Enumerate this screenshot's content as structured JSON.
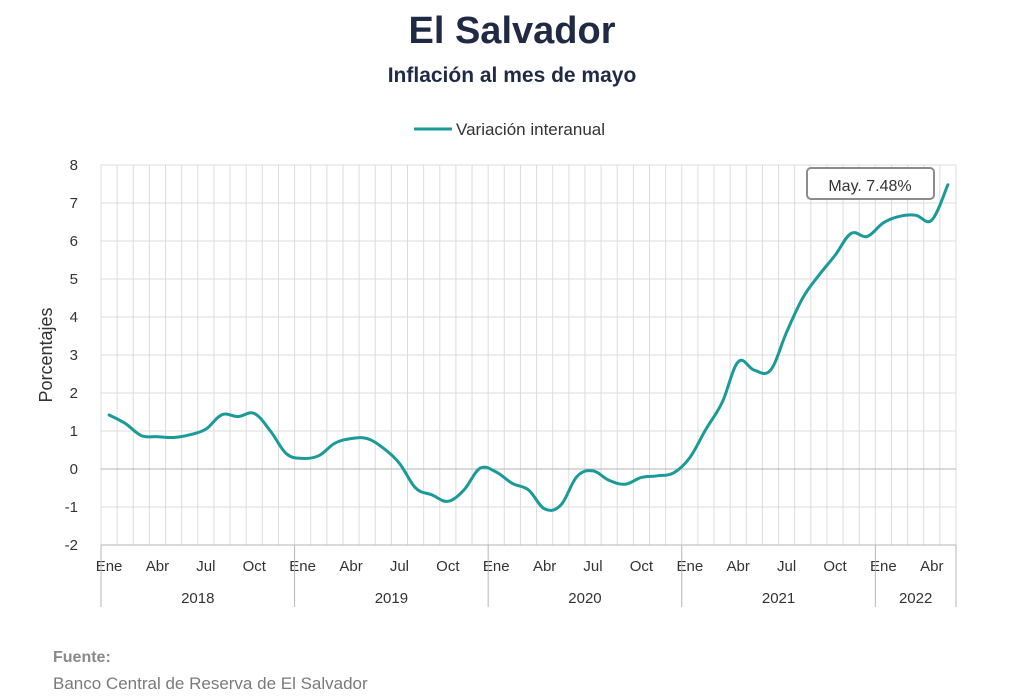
{
  "page": {
    "title": "El Salvador",
    "subtitle": "Inflación al mes de mayo",
    "source_label": "Fuente:",
    "source_text": "Banco Central de Reserva de El Salvador"
  },
  "chart_data": {
    "type": "line",
    "title": "El Salvador",
    "subtitle": "Inflación al mes de mayo",
    "xlabel": "",
    "ylabel": "Porcentajes",
    "ylim": [
      -2,
      8
    ],
    "yticks": [
      "8",
      "7",
      "6",
      "5",
      "4",
      "3",
      "2",
      "1",
      "0",
      "-1",
      "-2"
    ],
    "ytick_values": [
      8,
      7,
      6,
      5,
      4,
      3,
      2,
      1,
      0,
      -1,
      -2
    ],
    "month_ticks": [
      "Ene",
      "Abr",
      "Jul",
      "Oct",
      "Ene",
      "Abr",
      "Jul",
      "Oct",
      "Ene",
      "Abr",
      "Jul",
      "Oct",
      "Ene",
      "Abr",
      "Jul",
      "Oct",
      "Ene",
      "Abr"
    ],
    "years": [
      "2018",
      "2019",
      "2020",
      "2021",
      "2022"
    ],
    "legend_position": "top-center",
    "grid": true,
    "negative_tick_color": "#e02020",
    "series": [
      {
        "name": "Variación interanual",
        "color": "#1a9a98",
        "x": [
          "2018-01",
          "2018-02",
          "2018-03",
          "2018-04",
          "2018-05",
          "2018-06",
          "2018-07",
          "2018-08",
          "2018-09",
          "2018-10",
          "2018-11",
          "2018-12",
          "2019-01",
          "2019-02",
          "2019-03",
          "2019-04",
          "2019-05",
          "2019-06",
          "2019-07",
          "2019-08",
          "2019-09",
          "2019-10",
          "2019-11",
          "2019-12",
          "2020-01",
          "2020-02",
          "2020-03",
          "2020-04",
          "2020-05",
          "2020-06",
          "2020-07",
          "2020-08",
          "2020-09",
          "2020-10",
          "2020-11",
          "2020-12",
          "2021-01",
          "2021-02",
          "2021-03",
          "2021-04",
          "2021-05",
          "2021-06",
          "2021-07",
          "2021-08",
          "2021-09",
          "2021-10",
          "2021-11",
          "2021-12",
          "2022-01",
          "2022-02",
          "2022-03",
          "2022-04",
          "2022-05"
        ],
        "values": [
          1.42,
          1.2,
          0.88,
          0.85,
          0.83,
          0.9,
          1.05,
          1.43,
          1.38,
          1.46,
          1.0,
          0.4,
          0.28,
          0.35,
          0.68,
          0.8,
          0.8,
          0.55,
          0.15,
          -0.5,
          -0.68,
          -0.85,
          -0.55,
          0.02,
          -0.08,
          -0.38,
          -0.55,
          -1.05,
          -0.95,
          -0.2,
          -0.05,
          -0.3,
          -0.4,
          -0.22,
          -0.18,
          -0.1,
          0.3,
          1.05,
          1.75,
          2.82,
          2.6,
          2.6,
          3.6,
          4.5,
          5.1,
          5.62,
          6.2,
          6.12,
          6.48,
          6.65,
          6.68,
          6.55,
          7.48
        ]
      }
    ],
    "annotation": "May. 7.48%"
  }
}
